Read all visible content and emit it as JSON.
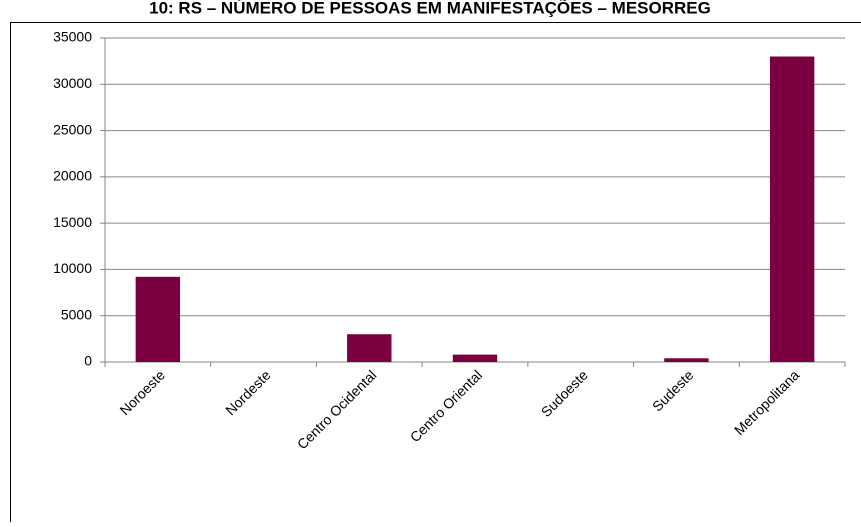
{
  "chart_data": {
    "type": "bar",
    "title": "10: RS – NÚMERO DE PESSOAS EM MANIFESTAÇÕES – MESORREG",
    "categories": [
      "Noroeste",
      "Nordeste",
      "Centro Ocidental",
      "Centro Oriental",
      "Sudoeste",
      "Sudeste",
      "Metropolitana"
    ],
    "values": [
      9200,
      0,
      3000,
      800,
      0,
      400,
      33000
    ],
    "color": "#7b0041",
    "ylim": [
      0,
      35000
    ],
    "yticks": [
      0,
      5000,
      10000,
      15000,
      20000,
      25000,
      30000,
      35000
    ],
    "grid": true
  }
}
